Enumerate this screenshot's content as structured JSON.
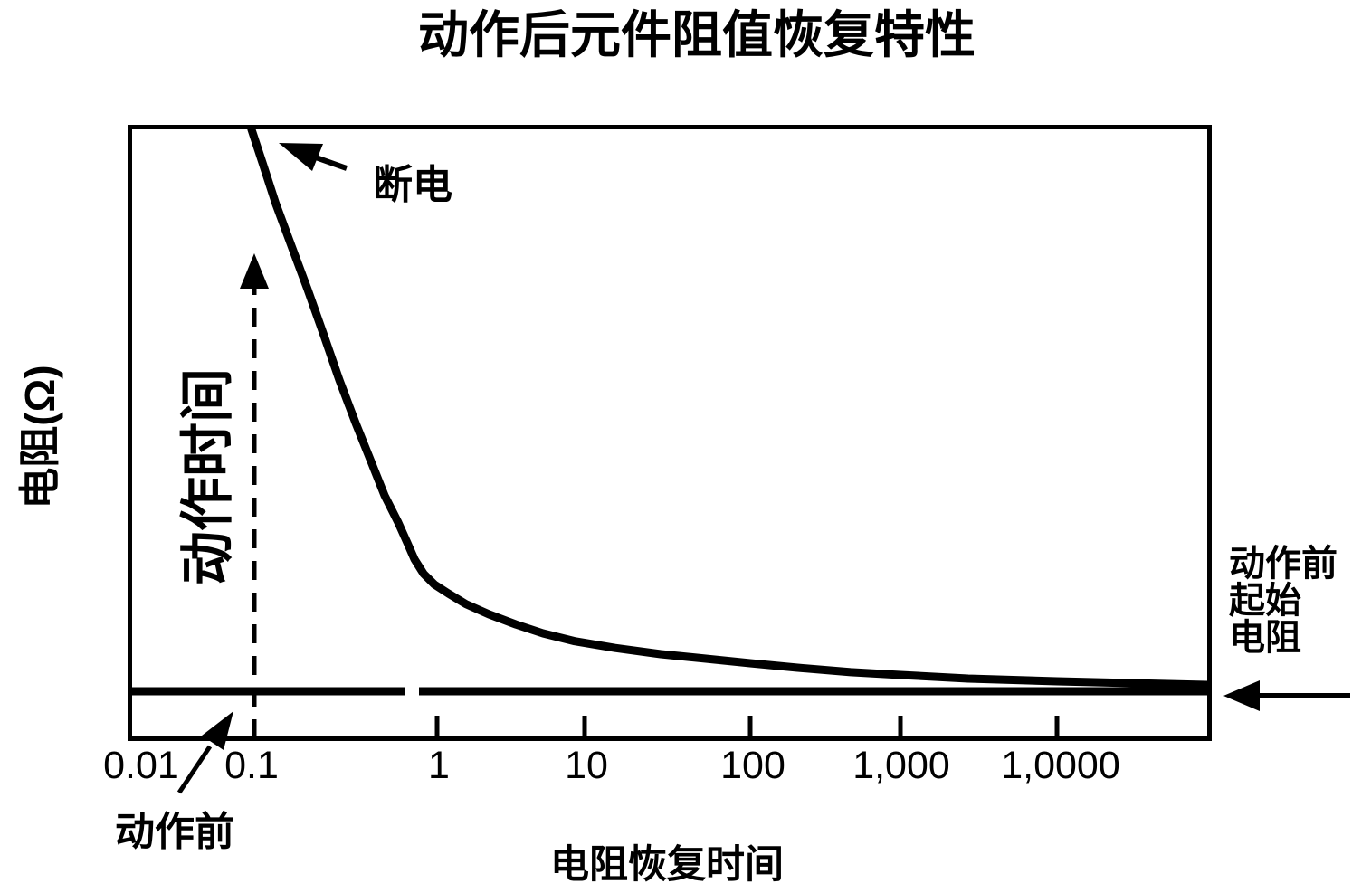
{
  "title": "动作后元件阻值恢复特性",
  "axes": {
    "y_label": "电阻(Ω)",
    "x_label": "电阻恢复时间",
    "x_ticks": [
      "0.01",
      "0.1",
      "1",
      "10",
      "100",
      "1,000",
      "1,0000"
    ]
  },
  "annotations": {
    "power_off": "断电",
    "operating_time": "动作时间",
    "pre_operation": "动作前",
    "initial_resistance_line1": "动作前",
    "initial_resistance_line2": "起始",
    "initial_resistance_line3": "电阻"
  },
  "colors": {
    "foreground": "#000000",
    "background": "#ffffff"
  },
  "chart_data": {
    "type": "line",
    "title": "动作后元件阻值恢复特性",
    "xlabel": "电阻恢复时间",
    "ylabel": "电阻(Ω)",
    "x_scale": "log",
    "x_tick_labels": [
      "0.01",
      "0.1",
      "1",
      "10",
      "100",
      "1,000",
      "1,0000"
    ],
    "x_tick_values": [
      0.01,
      0.1,
      1,
      10,
      100,
      1000,
      10000
    ],
    "y_axis_numeric": false,
    "grid": false,
    "legend": "none",
    "series": [
      {
        "name": "recovery-curve",
        "description": "元件断电后阻值随时间恢复的曲线（相对阻值：1=图顶部，0=动作前起始电阻水平）",
        "points_time_vs_relative_resistance": [
          [
            0.095,
            1.0
          ],
          [
            0.111,
            0.94
          ],
          [
            0.131,
            0.868
          ],
          [
            0.16,
            0.792
          ],
          [
            0.196,
            0.715
          ],
          [
            0.24,
            0.634
          ],
          [
            0.292,
            0.554
          ],
          [
            0.359,
            0.477
          ],
          [
            0.435,
            0.409
          ],
          [
            0.517,
            0.348
          ],
          [
            0.613,
            0.3
          ],
          [
            0.687,
            0.264
          ],
          [
            0.752,
            0.235
          ],
          [
            0.844,
            0.209
          ],
          [
            0.966,
            0.19
          ],
          [
            1.19,
            0.174
          ],
          [
            1.57,
            0.155
          ],
          [
            2.24,
            0.137
          ],
          [
            3.42,
            0.119
          ],
          [
            5.22,
            0.103
          ],
          [
            8.57,
            0.089
          ],
          [
            15.3,
            0.077
          ],
          [
            28.8,
            0.066
          ],
          [
            54,
            0.058
          ],
          [
            100,
            0.05
          ],
          [
            203,
            0.042
          ],
          [
            466,
            0.034
          ],
          [
            1000,
            0.029
          ],
          [
            2710,
            0.0225
          ],
          [
            10000,
            0.0177
          ],
          [
            29800,
            0.0145
          ],
          [
            91000,
            0.0113
          ]
        ]
      },
      {
        "name": "initial-resistance-baseline",
        "description": "动作前起始电阻水平线（相对阻值 0），在 t≈0.7 附近有断开符号",
        "relative_resistance": 0,
        "break_near_time": 0.7
      }
    ],
    "annotations": [
      {
        "text": "断电",
        "target": "曲线陡降段顶部, t≈0.1"
      },
      {
        "text": "动作时间",
        "target": "t=0.1 处向上虚线箭头"
      },
      {
        "text": "动作前",
        "target": "基线左端（坐标轴下方标注）"
      },
      {
        "text": "动作前起始电阻",
        "target": "图右侧指向基线的左向箭头"
      }
    ]
  }
}
